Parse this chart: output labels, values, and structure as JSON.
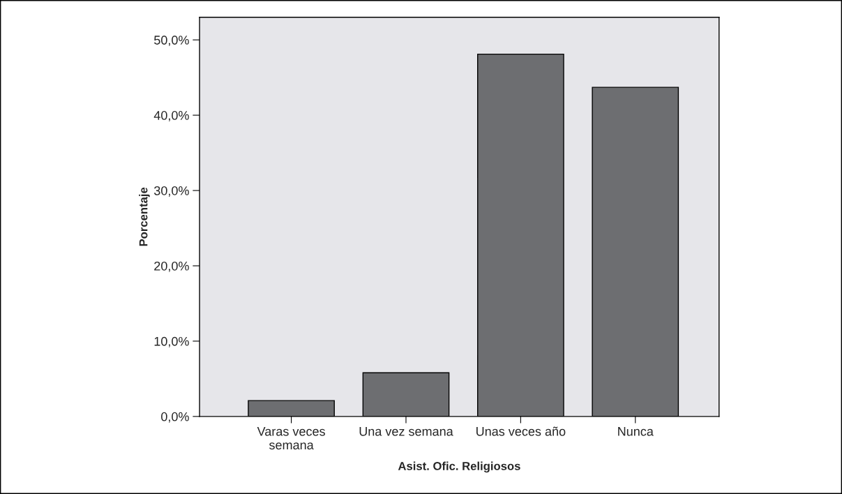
{
  "chart_data": {
    "type": "bar",
    "xlabel": "Asist. Ofic. Religiosos",
    "ylabel": "Porcentaje",
    "categories": [
      "Varas veces\nsemana",
      "Una vez semana",
      "Unas veces año",
      "Nunca"
    ],
    "values": [
      2.1,
      5.8,
      48.1,
      43.7
    ],
    "color": "#6d6e71",
    "ylim": [
      0,
      53
    ],
    "yticks": [
      {
        "value": 0,
        "label": "0,0%"
      },
      {
        "value": 10,
        "label": "10,0%"
      },
      {
        "value": 20,
        "label": "20,0%"
      },
      {
        "value": 30,
        "label": "30,0%"
      },
      {
        "value": 40,
        "label": "40,0%"
      },
      {
        "value": 50,
        "label": "50,0%"
      }
    ],
    "grid": false
  }
}
